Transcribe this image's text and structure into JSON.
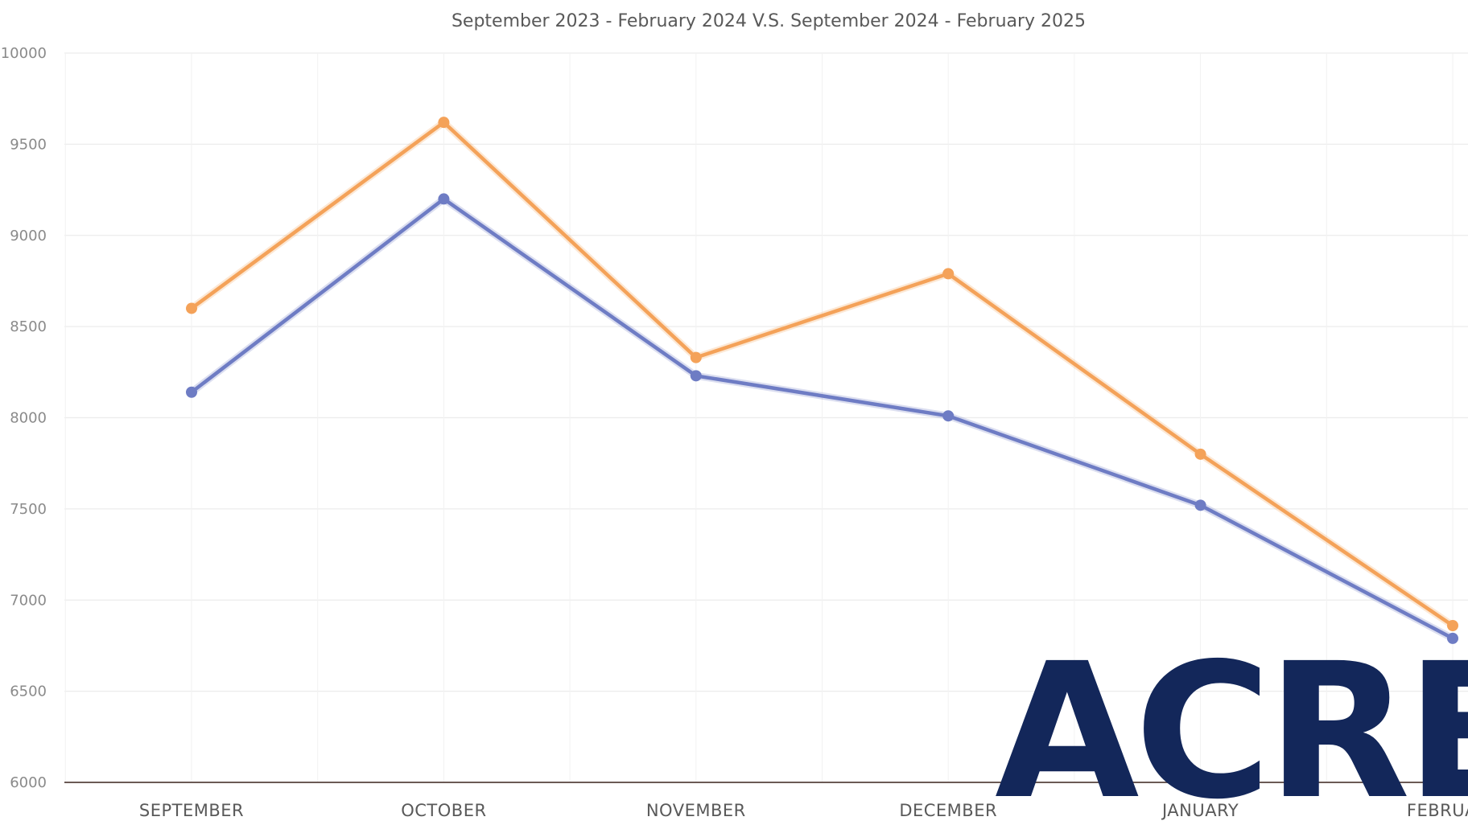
{
  "chart_data": {
    "type": "line",
    "title": "September 2023 - February 2024 V.S. September 2024 - February 2025",
    "categories": [
      "SEPTEMBER",
      "OCTOBER",
      "NOVEMBER",
      "DECEMBER",
      "JANUARY",
      "FEBRUARY"
    ],
    "series": [
      {
        "color": "#f4a259",
        "values": [
          8600,
          9620,
          8330,
          8790,
          7800,
          6860
        ]
      },
      {
        "color": "#6e7cc4",
        "values": [
          8140,
          9200,
          8230,
          8010,
          7520,
          6790
        ]
      }
    ],
    "ylim": [
      6000,
      10000
    ],
    "yticks": [
      "6000",
      "6500",
      "7000",
      "7500",
      "8000",
      "8500",
      "9000",
      "9500",
      "10000"
    ],
    "grid": true,
    "legend": "none"
  },
  "watermark": {
    "text": "ACRESH",
    "color": "#13275a"
  }
}
